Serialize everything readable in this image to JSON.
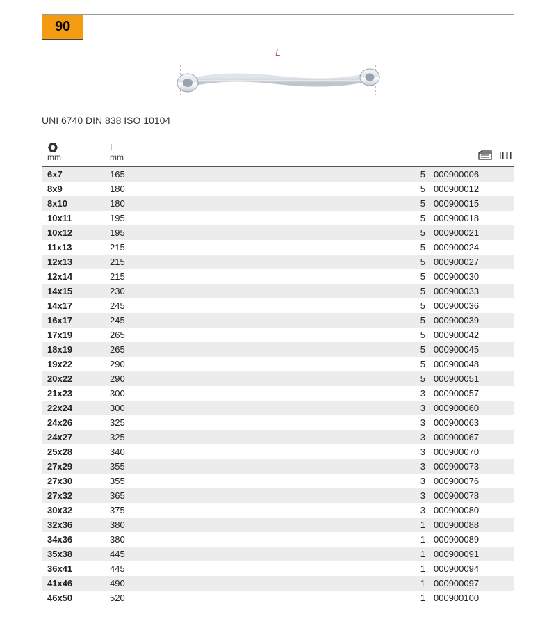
{
  "badge": "90",
  "dimension_label": "L",
  "standards_line": "UNI 6740 DIN 838 ISO 10104",
  "colors": {
    "badge_bg": "#f39c12",
    "alt_row_bg": "#ececec",
    "dimension_label": "#b050a0",
    "text": "#222222",
    "rule": "#555555"
  },
  "table": {
    "headers": {
      "size_unit": "mm",
      "length_label": "L",
      "length_unit": "mm"
    },
    "rows": [
      {
        "size": "6x7",
        "len": "165",
        "qty": "5",
        "code": "000900006"
      },
      {
        "size": "8x9",
        "len": "180",
        "qty": "5",
        "code": "000900012"
      },
      {
        "size": "8x10",
        "len": "180",
        "qty": "5",
        "code": "000900015"
      },
      {
        "size": "10x11",
        "len": "195",
        "qty": "5",
        "code": "000900018"
      },
      {
        "size": "10x12",
        "len": "195",
        "qty": "5",
        "code": "000900021"
      },
      {
        "size": "11x13",
        "len": "215",
        "qty": "5",
        "code": "000900024"
      },
      {
        "size": "12x13",
        "len": "215",
        "qty": "5",
        "code": "000900027"
      },
      {
        "size": "12x14",
        "len": "215",
        "qty": "5",
        "code": "000900030"
      },
      {
        "size": "14x15",
        "len": "230",
        "qty": "5",
        "code": "000900033"
      },
      {
        "size": "14x17",
        "len": "245",
        "qty": "5",
        "code": "000900036"
      },
      {
        "size": "16x17",
        "len": "245",
        "qty": "5",
        "code": "000900039"
      },
      {
        "size": "17x19",
        "len": "265",
        "qty": "5",
        "code": "000900042"
      },
      {
        "size": "18x19",
        "len": "265",
        "qty": "5",
        "code": "000900045"
      },
      {
        "size": "19x22",
        "len": "290",
        "qty": "5",
        "code": "000900048"
      },
      {
        "size": "20x22",
        "len": "290",
        "qty": "5",
        "code": "000900051"
      },
      {
        "size": "21x23",
        "len": "300",
        "qty": "3",
        "code": "000900057"
      },
      {
        "size": "22x24",
        "len": "300",
        "qty": "3",
        "code": "000900060"
      },
      {
        "size": "24x26",
        "len": "325",
        "qty": "3",
        "code": "000900063"
      },
      {
        "size": "24x27",
        "len": "325",
        "qty": "3",
        "code": "000900067"
      },
      {
        "size": "25x28",
        "len": "340",
        "qty": "3",
        "code": "000900070"
      },
      {
        "size": "27x29",
        "len": "355",
        "qty": "3",
        "code": "000900073"
      },
      {
        "size": "27x30",
        "len": "355",
        "qty": "3",
        "code": "000900076"
      },
      {
        "size": "27x32",
        "len": "365",
        "qty": "3",
        "code": "000900078"
      },
      {
        "size": "30x32",
        "len": "375",
        "qty": "3",
        "code": "000900080"
      },
      {
        "size": "32x36",
        "len": "380",
        "qty": "1",
        "code": "000900088"
      },
      {
        "size": "34x36",
        "len": "380",
        "qty": "1",
        "code": "000900089"
      },
      {
        "size": "35x38",
        "len": "445",
        "qty": "1",
        "code": "000900091"
      },
      {
        "size": "36x41",
        "len": "445",
        "qty": "1",
        "code": "000900094"
      },
      {
        "size": "41x46",
        "len": "490",
        "qty": "1",
        "code": "000900097"
      },
      {
        "size": "46x50",
        "len": "520",
        "qty": "1",
        "code": "000900100"
      }
    ]
  }
}
